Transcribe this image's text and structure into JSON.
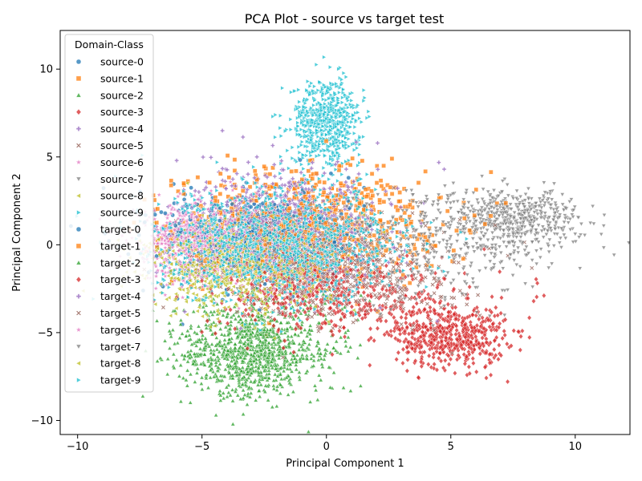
{
  "chart_data": {
    "type": "scatter",
    "title": "PCA Plot - source vs target test",
    "xlabel": "Principal Component 1",
    "ylabel": "Principal Component 2",
    "xlim": [
      -10.7,
      12.2
    ],
    "ylim": [
      -10.8,
      12.2
    ],
    "xticks": [
      -10,
      -5,
      0,
      5,
      10
    ],
    "yticks": [
      -10,
      -5,
      0,
      5,
      10
    ],
    "xtick_labels": [
      "−10",
      "−5",
      "0",
      "5",
      "10"
    ],
    "ytick_labels": [
      "−10",
      "−5",
      "0",
      "5",
      "10"
    ],
    "grid": false,
    "legend": {
      "title": "Domain-Class",
      "placement": "top-left"
    },
    "series": [
      {
        "name": "source-0",
        "class": 0,
        "domain": "source",
        "color": "#1f77b4",
        "marker": "circle",
        "cloud": {
          "center": [
            -3.0,
            0.5
          ],
          "spread": [
            1.8,
            1.2
          ],
          "count": 420
        }
      },
      {
        "name": "source-1",
        "class": 1,
        "domain": "source",
        "color": "#ff7f0e",
        "marker": "square",
        "cloud": {
          "center": [
            -1.2,
            1.0
          ],
          "spread": [
            2.4,
            1.6
          ],
          "count": 420
        }
      },
      {
        "name": "source-2",
        "class": 2,
        "domain": "source",
        "color": "#2ca02c",
        "marker": "triangle-up",
        "cloud": {
          "center": [
            -3.2,
            -6.3
          ],
          "spread": [
            1.3,
            1.1
          ],
          "count": 600
        }
      },
      {
        "name": "source-3",
        "class": 3,
        "domain": "source",
        "color": "#d62728",
        "marker": "diamond",
        "cloud": {
          "center": [
            5.0,
            -5.2
          ],
          "spread": [
            1.1,
            0.9
          ],
          "count": 520
        }
      },
      {
        "name": "source-4",
        "class": 4,
        "domain": "source",
        "color": "#9467bd",
        "marker": "plus",
        "cloud": {
          "center": [
            -2.0,
            1.2
          ],
          "spread": [
            1.8,
            1.6
          ],
          "count": 380
        }
      },
      {
        "name": "source-5",
        "class": 5,
        "domain": "source",
        "color": "#8c564b",
        "marker": "x",
        "cloud": {
          "center": [
            -0.5,
            -1.0
          ],
          "spread": [
            2.0,
            1.5
          ],
          "count": 380
        }
      },
      {
        "name": "source-6",
        "class": 6,
        "domain": "source",
        "color": "#e377c2",
        "marker": "star",
        "cloud": {
          "center": [
            -5.5,
            -0.2
          ],
          "spread": [
            1.2,
            1.0
          ],
          "count": 300
        }
      },
      {
        "name": "source-7",
        "class": 7,
        "domain": "source",
        "color": "#7f7f7f",
        "marker": "triangle-down",
        "cloud": {
          "center": [
            7.5,
            1.5
          ],
          "spread": [
            1.4,
            0.8
          ],
          "count": 520
        }
      },
      {
        "name": "source-8",
        "class": 8,
        "domain": "source",
        "color": "#bcbd22",
        "marker": "triangle-left",
        "cloud": {
          "center": [
            -4.0,
            -1.0
          ],
          "spread": [
            1.6,
            1.1
          ],
          "count": 420
        }
      },
      {
        "name": "source-9",
        "class": 9,
        "domain": "source",
        "color": "#17becf",
        "marker": "triangle-right",
        "cloud": {
          "center": [
            0.0,
            7.0
          ],
          "spread": [
            0.7,
            1.2
          ],
          "count": 620
        }
      },
      {
        "name": "target-0",
        "class": 0,
        "domain": "target",
        "color": "#1f77b4",
        "marker": "circle",
        "cloud": {
          "center": [
            -2.5,
            0.2
          ],
          "spread": [
            2.0,
            1.4
          ],
          "count": 420
        }
      },
      {
        "name": "target-1",
        "class": 1,
        "domain": "target",
        "color": "#ff7f0e",
        "marker": "square",
        "cloud": {
          "center": [
            -0.5,
            1.2
          ],
          "spread": [
            2.6,
            1.6
          ],
          "count": 420
        }
      },
      {
        "name": "target-2",
        "class": 2,
        "domain": "target",
        "color": "#2ca02c",
        "marker": "triangle-up",
        "cloud": {
          "center": [
            -2.5,
            -5.5
          ],
          "spread": [
            1.8,
            1.5
          ],
          "count": 500
        }
      },
      {
        "name": "target-3",
        "class": 3,
        "domain": "target",
        "color": "#d62728",
        "marker": "diamond",
        "cloud": {
          "center": [
            0.5,
            -2.8
          ],
          "spread": [
            2.5,
            1.2
          ],
          "count": 520
        }
      },
      {
        "name": "target-4",
        "class": 4,
        "domain": "target",
        "color": "#9467bd",
        "marker": "plus",
        "cloud": {
          "center": [
            -1.5,
            0.8
          ],
          "spread": [
            2.2,
            1.8
          ],
          "count": 380
        }
      },
      {
        "name": "target-5",
        "class": 5,
        "domain": "target",
        "color": "#8c564b",
        "marker": "x",
        "cloud": {
          "center": [
            0.5,
            -1.5
          ],
          "spread": [
            2.4,
            1.5
          ],
          "count": 380
        }
      },
      {
        "name": "target-6",
        "class": 6,
        "domain": "target",
        "color": "#e377c2",
        "marker": "star",
        "cloud": {
          "center": [
            -5.0,
            0.3
          ],
          "spread": [
            1.4,
            1.2
          ],
          "count": 300
        }
      },
      {
        "name": "target-7",
        "class": 7,
        "domain": "target",
        "color": "#7f7f7f",
        "marker": "triangle-down",
        "cloud": {
          "center": [
            4.5,
            0.0
          ],
          "spread": [
            2.5,
            1.6
          ],
          "count": 360
        }
      },
      {
        "name": "target-8",
        "class": 8,
        "domain": "target",
        "color": "#bcbd22",
        "marker": "triangle-left",
        "cloud": {
          "center": [
            -3.5,
            -1.5
          ],
          "spread": [
            1.8,
            1.3
          ],
          "count": 420
        }
      },
      {
        "name": "target-9",
        "class": 9,
        "domain": "target",
        "color": "#17becf",
        "marker": "triangle-right",
        "cloud": {
          "center": [
            -1.8,
            0.0
          ],
          "spread": [
            2.6,
            1.6
          ],
          "count": 900
        }
      }
    ]
  }
}
